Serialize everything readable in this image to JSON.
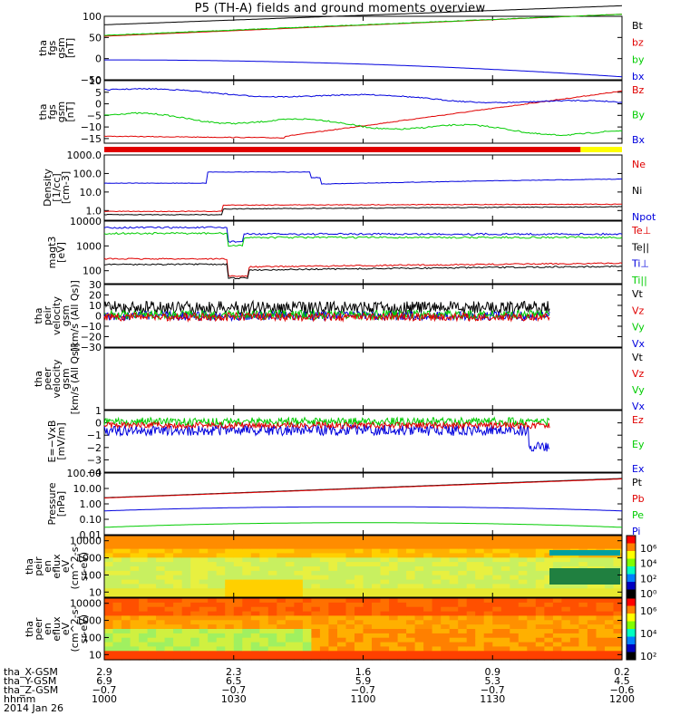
{
  "title": "P5 (TH-A) fields and ground moments overview",
  "colors": {
    "black": "#000000",
    "red": "#e00000",
    "green": "#00cc00",
    "blue": "#0000dd",
    "yellow": "#ffff00",
    "brightgreen": "#00ff00"
  },
  "chart_data": {
    "type": "line",
    "x_ticks": [
      "1000",
      "1030",
      "1100",
      "1130",
      "1200"
    ],
    "panels": [
      {
        "id": "fgs-gsm-mag",
        "ylabel": [
          "tha",
          "fgs",
          "gsm",
          "[nT]"
        ],
        "scale": "linear",
        "ylim": [
          -50,
          100
        ],
        "yticks": [
          "100",
          "50",
          "0",
          "−50"
        ],
        "legend": [
          {
            "name": "Bt",
            "color": "#000000"
          },
          {
            "name": "bz",
            "color": "#e00000"
          },
          {
            "name": "by",
            "color": "#00cc00"
          },
          {
            "name": "bx",
            "color": "#0000dd"
          }
        ]
      },
      {
        "id": "fgs-gsm-comp",
        "ylabel": [
          "tha",
          "fgs",
          "gsm",
          "[nT]"
        ],
        "scale": "linear",
        "ylim": [
          -17,
          10
        ],
        "yticks": [
          "10",
          "5",
          "0",
          "−5",
          "−10",
          "−15"
        ],
        "legend": [
          {
            "name": "Bz",
            "color": "#e00000"
          },
          {
            "name": "By",
            "color": "#00cc00"
          },
          {
            "name": "Bx",
            "color": "#0000dd"
          }
        ]
      },
      {
        "id": "density",
        "ylabel": [
          "Density",
          "[1/cc]",
          "[cm-3]"
        ],
        "scale": "log",
        "ylim": [
          0.3,
          1000
        ],
        "yticks": [
          "1000.0",
          "100.0",
          "10.0",
          "1.0"
        ],
        "legend": [
          {
            "name": "Ne",
            "color": "#e00000"
          },
          {
            "name": "Ni",
            "color": "#000000"
          },
          {
            "name": "Npot",
            "color": "#0000dd"
          }
        ]
      },
      {
        "id": "temperature",
        "ylabel": [
          "magt3",
          "[eV]"
        ],
        "scale": "log",
        "ylim": [
          30,
          10000
        ],
        "yticks": [
          "10000",
          "1000",
          "100"
        ],
        "legend": [
          {
            "name": "Te⊥",
            "color": "#e00000"
          },
          {
            "name": "Te||",
            "color": "#000000"
          },
          {
            "name": "Ti⊥",
            "color": "#0000dd"
          },
          {
            "name": "Ti||",
            "color": "#00cc00"
          }
        ]
      },
      {
        "id": "peir-velocity",
        "ylabel": [
          "tha",
          "peir",
          "velocity",
          "gsm",
          "[km/s (All Qs)]"
        ],
        "scale": "linear",
        "ylim": [
          -30,
          30
        ],
        "yticks": [
          "30",
          "20",
          "10",
          "0",
          "−10",
          "−20",
          "−30"
        ],
        "legend": [
          {
            "name": "Vt",
            "color": "#000000"
          },
          {
            "name": "Vz",
            "color": "#e00000"
          },
          {
            "name": "Vy",
            "color": "#00cc00"
          },
          {
            "name": "Vx",
            "color": "#0000dd"
          }
        ]
      },
      {
        "id": "peer-velocity",
        "ylabel": [
          "tha",
          "peer",
          "velocity",
          "gsm",
          "[km/s (All Qs)]"
        ],
        "scale": "linear",
        "ylim": [
          -30,
          30
        ],
        "yticks": [],
        "legend": [
          {
            "name": "Vt",
            "color": "#000000"
          },
          {
            "name": "Vz",
            "color": "#e00000"
          },
          {
            "name": "Vy",
            "color": "#00cc00"
          },
          {
            "name": "Vx",
            "color": "#0000dd"
          }
        ]
      },
      {
        "id": "efield",
        "ylabel": [
          "E=−VxB",
          "[mV/m]"
        ],
        "scale": "linear",
        "ylim": [
          -4,
          1
        ],
        "yticks": [
          "1",
          "0",
          "−1",
          "−2",
          "−3",
          "−4"
        ],
        "legend": [
          {
            "name": "Ez",
            "color": "#e00000"
          },
          {
            "name": "Ey",
            "color": "#00cc00"
          },
          {
            "name": "Ex",
            "color": "#0000dd"
          }
        ]
      },
      {
        "id": "pressure",
        "ylabel": [
          "Pressure",
          "[nPa]"
        ],
        "scale": "log",
        "ylim": [
          0.01,
          100
        ],
        "yticks": [
          "100.00",
          "10.00",
          "1.00",
          "0.10",
          "0.01"
        ],
        "legend": [
          {
            "name": "Pt",
            "color": "#000000"
          },
          {
            "name": "Pb",
            "color": "#e00000"
          },
          {
            "name": "Pe",
            "color": "#00cc00"
          },
          {
            "name": "Pi",
            "color": "#0000dd"
          }
        ]
      },
      {
        "id": "peir-spectrogram",
        "ylabel": [
          "tha",
          "peir",
          "en",
          "eflux",
          "eV",
          "(cm^2-s-",
          "sr-eV)"
        ],
        "scale": "log",
        "ylim": [
          5,
          20000
        ],
        "yticks": [
          "10000",
          "1000",
          "100",
          "10"
        ],
        "colorbar": [
          "10⁶",
          "10⁴",
          "10²",
          "10⁰"
        ]
      },
      {
        "id": "peer-spectrogram",
        "ylabel": [
          "tha",
          "peer",
          "en",
          "eflux",
          "eV",
          "(cm^2-s-",
          "sr-eV)"
        ],
        "scale": "log",
        "ylim": [
          5,
          20000
        ],
        "yticks": [
          "10000",
          "1000",
          "100",
          "10"
        ],
        "colorbar": [
          "10⁶",
          "10⁴",
          "10²"
        ]
      }
    ],
    "mode_bar": [
      {
        "from": 0.0,
        "to": 0.92,
        "color": "#e00000"
      },
      {
        "from": 0.92,
        "to": 1.0,
        "color": "#ffff00"
      }
    ],
    "ephemeris": {
      "labels": [
        "tha_X-GSM",
        "tha_Y-GSM",
        "tha_Z-GSM",
        "hhmm",
        "2014 Jan 26"
      ],
      "rows": [
        [
          "2.9",
          "2.3",
          "1.6",
          "0.9",
          "0.2"
        ],
        [
          "6.9",
          "6.5",
          "5.9",
          "5.3",
          "4.5"
        ],
        [
          "−0.7",
          "−0.7",
          "−0.7",
          "−0.7",
          "−0.6"
        ],
        [
          "1000",
          "1030",
          "1100",
          "1130",
          "1200"
        ]
      ]
    }
  }
}
